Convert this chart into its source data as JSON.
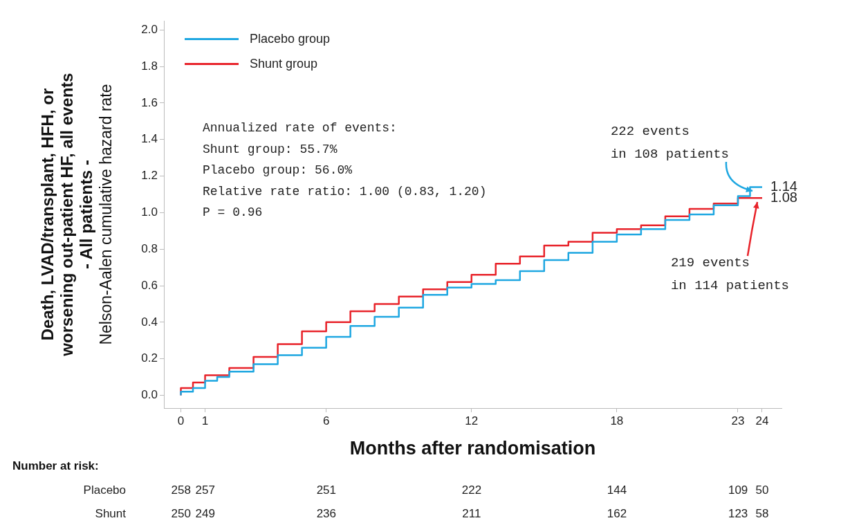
{
  "chart_data": {
    "type": "step",
    "ylabel": "Death, LVAD/transplant, HFH, or\nworsening out-patient HF, all events\n- All patients -\nNelson-Aalen cumulative hazard rate",
    "xlabel": "Months after randomisation",
    "series": [
      {
        "name": "Placebo group",
        "color": "#1ea7e1",
        "x": [
          0,
          0.5,
          1,
          1.5,
          2,
          3,
          4,
          5,
          6,
          7,
          8,
          9,
          10,
          11,
          12,
          13,
          14,
          15,
          16,
          17,
          18,
          19,
          20,
          21,
          22,
          23,
          23.5,
          24
        ],
        "values": [
          0,
          0.02,
          0.04,
          0.08,
          0.1,
          0.13,
          0.17,
          0.22,
          0.26,
          0.32,
          0.38,
          0.43,
          0.48,
          0.55,
          0.59,
          0.61,
          0.63,
          0.68,
          0.74,
          0.78,
          0.84,
          0.88,
          0.91,
          0.96,
          0.99,
          1.04,
          1.09,
          1.14
        ],
        "value_labels": [
          null,
          null,
          null,
          null,
          null,
          null,
          null,
          null,
          null,
          null,
          null,
          null,
          null,
          null,
          null,
          null,
          null,
          null,
          null,
          null,
          null,
          null,
          null,
          null,
          null,
          null,
          null,
          "1.14"
        ]
      },
      {
        "name": "Shunt group",
        "color": "#e8232a",
        "x": [
          0,
          0.5,
          1,
          2,
          3,
          4,
          5,
          6,
          7,
          8,
          9,
          10,
          11,
          12,
          13,
          14,
          15,
          16,
          17,
          18,
          19,
          20,
          21,
          22,
          23,
          24
        ],
        "values": [
          0,
          0.04,
          0.07,
          0.11,
          0.15,
          0.21,
          0.28,
          0.35,
          0.4,
          0.46,
          0.5,
          0.54,
          0.58,
          0.62,
          0.66,
          0.72,
          0.76,
          0.82,
          0.84,
          0.89,
          0.91,
          0.93,
          0.98,
          1.02,
          1.05,
          1.08
        ],
        "value_labels": [
          null,
          null,
          null,
          null,
          null,
          null,
          null,
          null,
          null,
          null,
          null,
          null,
          null,
          null,
          null,
          null,
          null,
          null,
          null,
          null,
          null,
          null,
          null,
          null,
          null,
          "1.08"
        ]
      }
    ],
    "xlim": [
      -0.7,
      24.8
    ],
    "xticks": [
      0,
      1,
      6,
      12,
      18,
      23,
      24
    ],
    "ylim": [
      -0.07,
      2.05
    ],
    "yticks": [
      {
        "value": 0,
        "label": "0.0"
      },
      {
        "value": 0.2,
        "label": "0.2"
      },
      {
        "value": 0.4,
        "label": "0.4"
      },
      {
        "value": 0.6,
        "label": "0.6"
      },
      {
        "value": 0.8,
        "label": "0.8"
      },
      {
        "value": 1,
        "label": "1.0"
      },
      {
        "value": 1.2,
        "label": "1.2"
      },
      {
        "value": 1.4,
        "label": "1.4"
      },
      {
        "value": 1.6,
        "label": "1.6"
      },
      {
        "value": 1.8,
        "label": "1.8"
      },
      {
        "value": 2,
        "label": "2.0"
      }
    ],
    "grid": false,
    "legend": "top left",
    "line_style": "solid",
    "marker": "none",
    "annotations": [
      "Annualized rate of events:\nShunt group: 55.7%\nPlacebo group: 56.0%\nRelative rate ratio: 1.00 (0.83, 1.20)\nP = 0.96",
      {
        "text": "222 events\nin 108 patients",
        "x": 23.6,
        "y": 1.12
      },
      {
        "text": "219 events\nin 114 patients",
        "x": 23.8,
        "y": 1.06
      },
      "Number at risk:",
      "Placebo 258 257 251 222 144 109 50",
      "Shunt 250 249 236 211 162 123 58"
    ]
  }
}
